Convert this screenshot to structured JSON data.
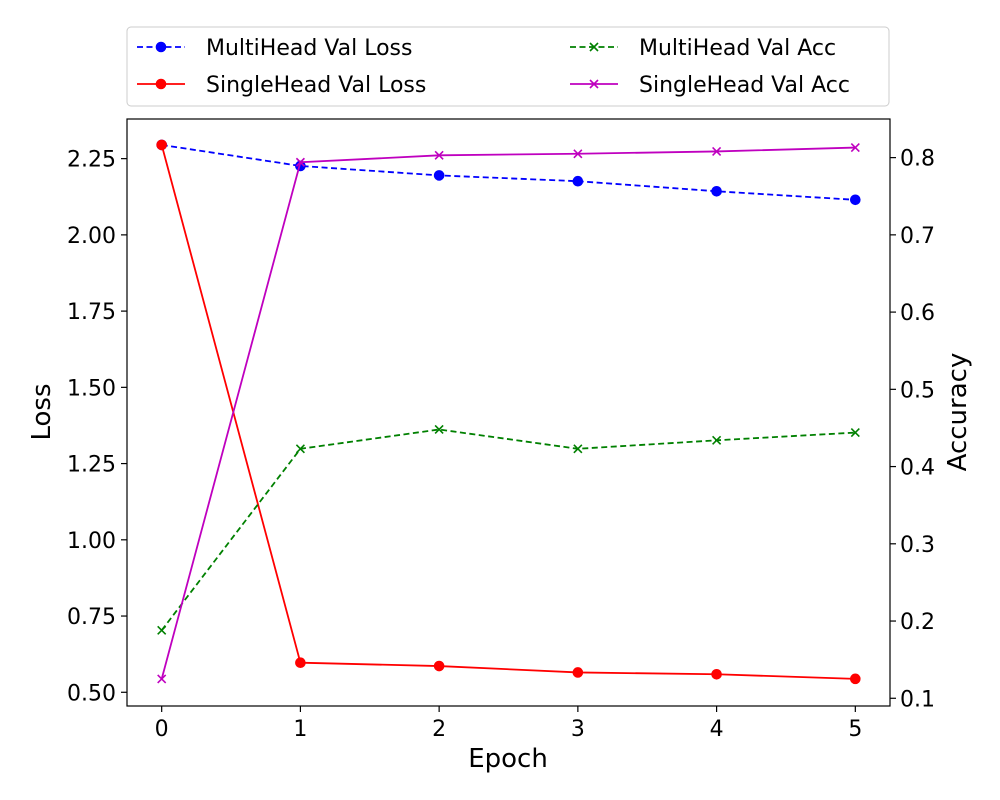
{
  "chart_data": {
    "type": "line",
    "xlabel": "Epoch",
    "ylabel_left": "Loss",
    "ylabel_right": "Accuracy",
    "x": [
      0,
      1,
      2,
      3,
      4,
      5
    ],
    "x_ticks": [
      "0",
      "1",
      "2",
      "3",
      "4",
      "5"
    ],
    "xlim": [
      -0.25,
      5.25
    ],
    "ylim_left": [
      0.455,
      2.38
    ],
    "ylim_right": [
      0.09,
      0.85
    ],
    "y_ticks_left": [
      "0.50",
      "0.75",
      "1.00",
      "1.25",
      "1.50",
      "1.75",
      "2.00",
      "2.25"
    ],
    "y_ticks_right": [
      "0.1",
      "0.2",
      "0.3",
      "0.4",
      "0.5",
      "0.6",
      "0.7",
      "0.8"
    ],
    "grid": false,
    "legend_position": "top, above plot, two columns",
    "series": [
      {
        "name": "MultiHead Val Loss",
        "axis": "left",
        "color": "#0000ff",
        "line_style": "dashed",
        "marker": "circle",
        "values": [
          2.295,
          2.226,
          2.195,
          2.176,
          2.143,
          2.115
        ]
      },
      {
        "name": "SingleHead Val Loss",
        "axis": "left",
        "color": "#ff0000",
        "line_style": "solid",
        "marker": "circle",
        "values": [
          2.295,
          0.597,
          0.586,
          0.565,
          0.559,
          0.544
        ]
      },
      {
        "name": "MultiHead Val Acc",
        "axis": "right",
        "color": "#008000",
        "line_style": "dashed",
        "marker": "x",
        "values": [
          0.188,
          0.423,
          0.448,
          0.423,
          0.434,
          0.444
        ]
      },
      {
        "name": "SingleHead Val Acc",
        "axis": "right",
        "color": "#bf00bf",
        "line_style": "solid",
        "marker": "x",
        "values": [
          0.125,
          0.794,
          0.803,
          0.805,
          0.808,
          0.813
        ]
      }
    ]
  }
}
